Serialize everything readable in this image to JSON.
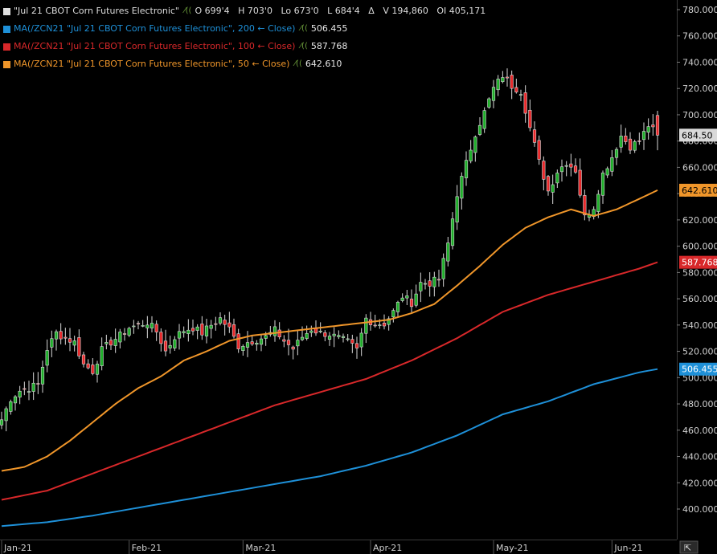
{
  "legend": {
    "main": {
      "name": "\"Jul 21 CBOT Corn Futures Electronic\"",
      "swatch": "#e0e0e0",
      "open": "O 699'4",
      "high": "H 703'0",
      "low": "Lo 673'0",
      "last": "L 684'4",
      "delta": "Δ",
      "volume": "V 194,860",
      "oi": "OI 405,171"
    },
    "ma200": {
      "name": "MA(/ZCN21 \"Jul 21 CBOT Corn Futures Electronic\", 200 ← Close)",
      "value": "506.455",
      "color": "#1e90d8"
    },
    "ma100": {
      "name": "MA(/ZCN21 \"Jul 21 CBOT Corn Futures Electronic\", 100 ← Close)",
      "value": "587.768",
      "color": "#d8282a"
    },
    "ma50": {
      "name": "MA(/ZCN21 \"Jul 21 CBOT Corn Futures Electronic\", 50 ← Close)",
      "value": "642.610",
      "color": "#f0962a"
    }
  },
  "edit_glyph": "⁄((",
  "corner_icon": "⇱",
  "chart_data": {
    "type": "candlestick",
    "y_axis": {
      "min": 380,
      "max": 785,
      "ticks": [
        "780.000",
        "760.000",
        "740.000",
        "720.000",
        "700.000",
        "680.000",
        "660.000",
        "640.000",
        "620.000",
        "600.000",
        "580.000",
        "560.000",
        "540.000",
        "520.000",
        "500.000",
        "480.000",
        "460.000",
        "440.000",
        "420.000",
        "400.000"
      ],
      "position": "right"
    },
    "x_axis": {
      "labels": [
        {
          "label": "Jan-21",
          "index": 0
        },
        {
          "label": "Feb-21",
          "index": 28
        },
        {
          "label": "Mar-21",
          "index": 53
        },
        {
          "label": "Apr-21",
          "index": 81
        },
        {
          "label": "May-21",
          "index": 108
        },
        {
          "label": "Jun-21",
          "index": 134
        }
      ],
      "count": 145
    },
    "price_tags": [
      {
        "value": 684.5,
        "label": "684.50",
        "bg": "#d9d9d9",
        "fg": "#000000"
      },
      {
        "value": 642.61,
        "label": "642.610",
        "bg": "#f0962a",
        "fg": "#000000"
      },
      {
        "value": 587.768,
        "label": "587.768",
        "bg": "#d8282a",
        "fg": "#ffffff"
      },
      {
        "value": 506.455,
        "label": "506.455",
        "bg": "#1e90d8",
        "fg": "#ffffff"
      }
    ],
    "close_anchors": [
      [
        0,
        468
      ],
      [
        2,
        484
      ],
      [
        4,
        490
      ],
      [
        6,
        492
      ],
      [
        8,
        495
      ],
      [
        10,
        522
      ],
      [
        12,
        534
      ],
      [
        14,
        530
      ],
      [
        16,
        527
      ],
      [
        18,
        510
      ],
      [
        20,
        505
      ],
      [
        22,
        521
      ],
      [
        24,
        527
      ],
      [
        26,
        532
      ],
      [
        28,
        538
      ],
      [
        30,
        540
      ],
      [
        32,
        542
      ],
      [
        34,
        535
      ],
      [
        36,
        520
      ],
      [
        38,
        531
      ],
      [
        40,
        536
      ],
      [
        42,
        538
      ],
      [
        44,
        534
      ],
      [
        46,
        540
      ],
      [
        48,
        545
      ],
      [
        50,
        537
      ],
      [
        52,
        524
      ],
      [
        54,
        527
      ],
      [
        56,
        529
      ],
      [
        58,
        531
      ],
      [
        60,
        536
      ],
      [
        62,
        528
      ],
      [
        64,
        522
      ],
      [
        66,
        531
      ],
      [
        68,
        537
      ],
      [
        70,
        534
      ],
      [
        72,
        533
      ],
      [
        74,
        530
      ],
      [
        76,
        527
      ],
      [
        78,
        521
      ],
      [
        80,
        545
      ],
      [
        82,
        541
      ],
      [
        84,
        541
      ],
      [
        86,
        550
      ],
      [
        88,
        562
      ],
      [
        90,
        557
      ],
      [
        92,
        572
      ],
      [
        94,
        572
      ],
      [
        96,
        575
      ],
      [
        98,
        602
      ],
      [
        100,
        640
      ],
      [
        102,
        663
      ],
      [
        104,
        686
      ],
      [
        106,
        702
      ],
      [
        108,
        720
      ],
      [
        110,
        730
      ],
      [
        112,
        722
      ],
      [
        114,
        718
      ],
      [
        116,
        690
      ],
      [
        118,
        664
      ],
      [
        120,
        642
      ],
      [
        122,
        657
      ],
      [
        124,
        664
      ],
      [
        126,
        658
      ],
      [
        128,
        622
      ],
      [
        130,
        630
      ],
      [
        132,
        655
      ],
      [
        134,
        668
      ],
      [
        136,
        684
      ],
      [
        138,
        676
      ],
      [
        140,
        680
      ],
      [
        142,
        692
      ],
      [
        144,
        684.5
      ]
    ],
    "series": [
      {
        "name": "MA 50",
        "color": "#f0962a",
        "values": [
          [
            0,
            429
          ],
          [
            5,
            432
          ],
          [
            10,
            440
          ],
          [
            15,
            452
          ],
          [
            20,
            466
          ],
          [
            25,
            480
          ],
          [
            30,
            492
          ],
          [
            35,
            501
          ],
          [
            40,
            513
          ],
          [
            45,
            520
          ],
          [
            50,
            528
          ],
          [
            55,
            532
          ],
          [
            60,
            534
          ],
          [
            65,
            536
          ],
          [
            70,
            538
          ],
          [
            75,
            540
          ],
          [
            80,
            542
          ],
          [
            85,
            544
          ],
          [
            90,
            549
          ],
          [
            95,
            556
          ],
          [
            100,
            570
          ],
          [
            105,
            585
          ],
          [
            110,
            601
          ],
          [
            115,
            614
          ],
          [
            120,
            622
          ],
          [
            125,
            628
          ],
          [
            130,
            623
          ],
          [
            135,
            628
          ],
          [
            140,
            636
          ],
          [
            144,
            642.6
          ]
        ]
      },
      {
        "name": "MA 100",
        "color": "#d8282a",
        "values": [
          [
            0,
            407
          ],
          [
            10,
            414
          ],
          [
            20,
            427
          ],
          [
            30,
            440
          ],
          [
            40,
            453
          ],
          [
            50,
            466
          ],
          [
            60,
            479
          ],
          [
            70,
            489
          ],
          [
            80,
            499
          ],
          [
            90,
            513
          ],
          [
            100,
            530
          ],
          [
            110,
            550
          ],
          [
            120,
            563
          ],
          [
            130,
            573
          ],
          [
            140,
            583
          ],
          [
            144,
            587.8
          ]
        ]
      },
      {
        "name": "MA 200",
        "color": "#1e90d8",
        "values": [
          [
            0,
            387
          ],
          [
            10,
            390
          ],
          [
            20,
            395
          ],
          [
            30,
            401
          ],
          [
            40,
            407
          ],
          [
            50,
            413
          ],
          [
            60,
            419
          ],
          [
            70,
            425
          ],
          [
            80,
            433
          ],
          [
            90,
            443
          ],
          [
            100,
            456
          ],
          [
            110,
            472
          ],
          [
            120,
            482
          ],
          [
            130,
            495
          ],
          [
            140,
            504
          ],
          [
            144,
            506.5
          ]
        ]
      }
    ]
  }
}
